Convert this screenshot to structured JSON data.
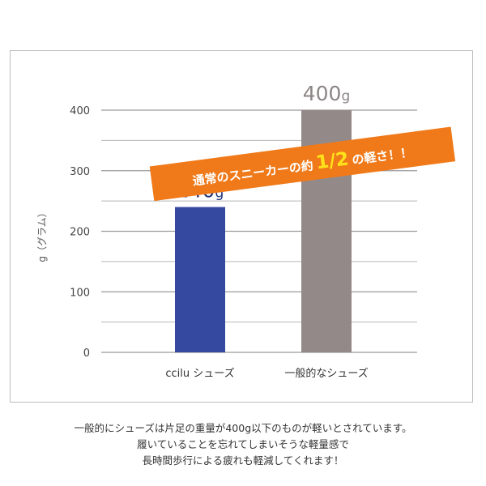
{
  "chart_data": {
    "type": "bar",
    "ylabel": "g（グラム）",
    "ylim": [
      0,
      400
    ],
    "yticks": [
      0,
      100,
      200,
      300,
      400
    ],
    "grid": true,
    "categories": [
      "ccilu シューズ",
      "一般的なシューズ"
    ],
    "values": [
      240,
      400
    ],
    "data_labels": [
      {
        "num": "240",
        "unit": "g"
      },
      {
        "num": "400",
        "unit": "g"
      }
    ],
    "bar_colors": [
      "#3549a0",
      "#938989"
    ],
    "banner": {
      "prefix": "通常のスニーカーの約",
      "highlight": "1/2",
      "suffix": "の軽さ！！",
      "color": "#f07a1a",
      "highlight_color": "#ffe21a"
    }
  },
  "caption": [
    "一般的にシューズは片足の重量が400g以下のものが軽いとされています。",
    "履いていることを忘れてしまいそうな軽量感で",
    "長時間歩行による疲れも軽減してくれます！"
  ]
}
